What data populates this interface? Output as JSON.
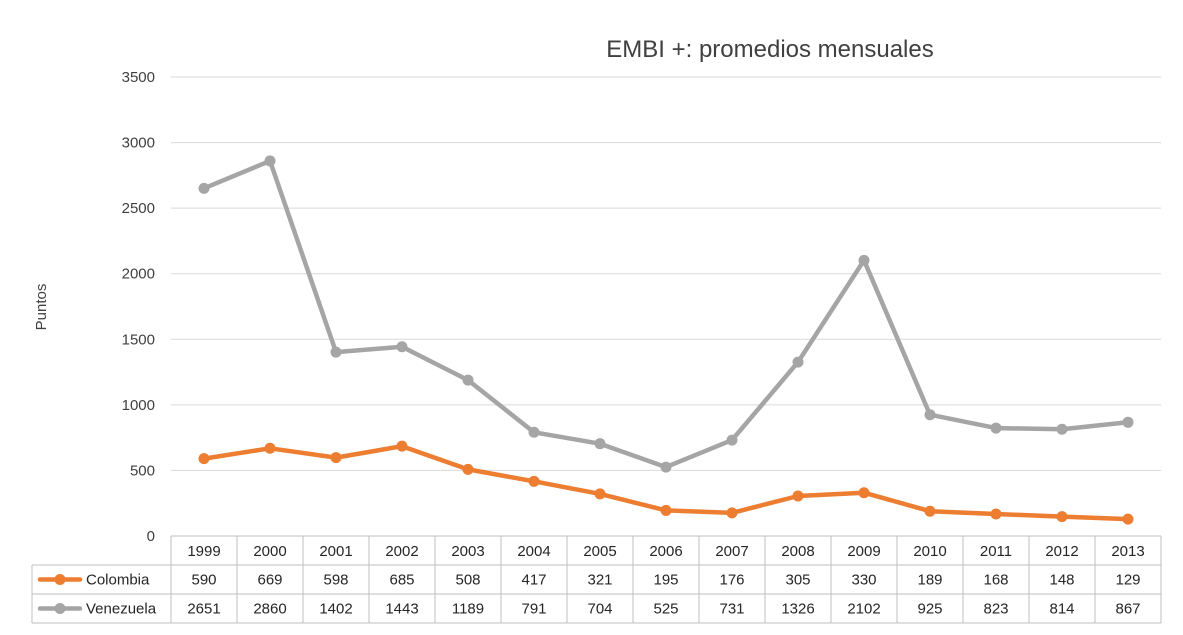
{
  "chart_data": {
    "type": "line",
    "title": "EMBI +: promedios mensuales",
    "xlabel": "",
    "ylabel": "Puntos",
    "categories": [
      "1999",
      "2000",
      "2001",
      "2002",
      "2003",
      "2004",
      "2005",
      "2006",
      "2007",
      "2008",
      "2009",
      "2010",
      "2011",
      "2012",
      "2013"
    ],
    "ylim": [
      0,
      3500
    ],
    "yticks": [
      0,
      500,
      1000,
      1500,
      2000,
      2500,
      3000,
      3500
    ],
    "grid": true,
    "legend": "data-table",
    "series": [
      {
        "name": "Colombia",
        "color": "#ED7D31",
        "values": [
          590,
          669,
          598,
          685,
          508,
          417,
          321,
          195,
          176,
          305,
          330,
          189,
          168,
          148,
          129
        ]
      },
      {
        "name": "Venezuela",
        "color": "#A5A5A5",
        "values": [
          2651,
          2860,
          1402,
          1443,
          1189,
          791,
          704,
          525,
          731,
          1326,
          2102,
          925,
          823,
          814,
          867
        ]
      }
    ]
  }
}
